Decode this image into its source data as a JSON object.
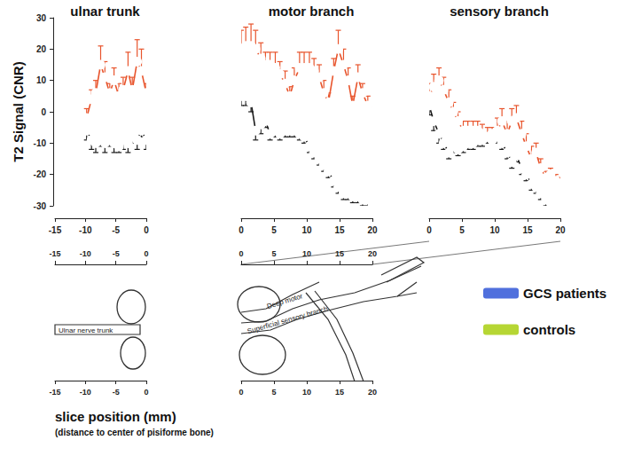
{
  "chart_data": [
    {
      "type": "line",
      "title": "ulnar trunk",
      "ylabel": "T2 Signal (CNR)",
      "xlim": [
        -15,
        0
      ],
      "xticks": [
        -15,
        -10,
        -5,
        0
      ],
      "ylim": [
        -30,
        30
      ],
      "yticks": [
        -30,
        -20,
        -10,
        0,
        10,
        20,
        30
      ],
      "x": [
        -9.8,
        -9.0,
        -8.3,
        -7.5,
        -6.8,
        -6.0,
        -5.3,
        -4.5,
        -3.8,
        -3.0,
        -2.3,
        -1.5,
        -0.8,
        0
      ],
      "series": [
        {
          "name": "GCS patients",
          "color": "#e8542c",
          "marker": "circle",
          "line_style": "solid",
          "values": [
            -2,
            4,
            6,
            15,
            11,
            6,
            10,
            5,
            7,
            13,
            7,
            16,
            13,
            6
          ],
          "error_plus": [
            3,
            3,
            4,
            6,
            5,
            3,
            4,
            4,
            4,
            6,
            4,
            7,
            7,
            3
          ]
        },
        {
          "name": "controls",
          "color": "#1a1a1a",
          "marker": "circle",
          "line_style": "solid",
          "values": [
            -6,
            -9,
            -10,
            -9,
            -10,
            -9,
            -10,
            -11,
            -9,
            -10,
            -8,
            -9,
            -6,
            -9
          ],
          "error_minus": [
            3,
            3,
            3,
            2,
            3,
            2,
            3,
            2,
            3,
            3,
            2,
            3,
            2,
            3
          ]
        }
      ]
    },
    {
      "type": "line",
      "title": "motor branch",
      "tick_labels": "x",
      "xlim": [
        0,
        20
      ],
      "xticks": [
        0,
        5,
        10,
        15,
        20
      ],
      "ylim": [
        -30,
        30
      ],
      "yticks": [
        -30,
        -20,
        -10,
        0,
        10,
        20,
        30
      ],
      "x": [
        0,
        0.7,
        1.5,
        2.2,
        3.0,
        3.7,
        4.4,
        5.2,
        5.9,
        6.7,
        7.4,
        8.1,
        8.9,
        9.6,
        10.4,
        11.1,
        11.9,
        12.6,
        13.3,
        14.1,
        14.8,
        15.6,
        16.3,
        17.0,
        17.8,
        18.5,
        19.3,
        20.0
      ],
      "series": [
        {
          "name": "GCS patients",
          "color": "#e8542c",
          "marker": "circle",
          "line_style": "solid",
          "values": [
            20,
            21,
            21,
            20,
            17,
            15,
            15,
            14,
            12,
            9,
            5,
            10,
            14,
            14,
            14,
            13,
            11,
            6,
            3,
            13,
            20,
            15,
            10,
            2,
            11,
            6,
            2,
            0
          ],
          "error_plus": [
            6,
            6,
            7,
            6,
            5,
            4,
            4,
            5,
            4,
            4,
            3,
            4,
            5,
            5,
            5,
            4,
            4,
            4,
            3,
            4,
            6,
            5,
            4,
            3,
            4,
            3,
            3,
            2
          ]
        },
        {
          "name": "controls",
          "color": "#1a1a1a",
          "marker": "circle",
          "line_style": "solid",
          "values": [
            5,
            5,
            3,
            -6,
            -4,
            -3,
            -7,
            -6,
            -7,
            -6,
            -6,
            -6,
            -7,
            -8,
            -11,
            -13,
            -15,
            -17,
            -19,
            -22,
            -24,
            -26,
            -26,
            -27,
            -27,
            -28,
            -28,
            -30
          ],
          "error_minus": [
            3,
            3,
            3,
            3,
            3,
            2,
            2,
            2,
            2,
            2,
            2,
            2,
            2,
            2,
            2,
            2,
            2,
            2,
            2,
            2,
            2,
            2,
            2,
            2,
            2,
            2,
            2,
            1
          ]
        }
      ]
    },
    {
      "type": "line",
      "title": "sensory branch",
      "tick_labels": "x",
      "xlim": [
        0,
        20
      ],
      "xticks": [
        0,
        5,
        10,
        15,
        20
      ],
      "ylim": [
        -30,
        30
      ],
      "yticks": [
        -30,
        -20,
        -10,
        0,
        10,
        20,
        30
      ],
      "x": [
        0,
        0.7,
        1.5,
        2.2,
        3.0,
        3.7,
        4.4,
        5.2,
        5.9,
        6.7,
        7.4,
        8.1,
        8.9,
        9.6,
        10.4,
        11.1,
        11.9,
        12.6,
        13.3,
        14.1,
        14.8,
        15.6,
        16.3,
        17.0,
        17.8,
        18.5,
        19.3,
        20.0
      ],
      "series": [
        {
          "name": "GCS patients",
          "color": "#e8542c",
          "marker": "circle",
          "line_style": "solid",
          "values": [
            5,
            8,
            10,
            7,
            3,
            0,
            -3,
            -6,
            -6,
            -6,
            -6,
            -7,
            -8,
            -9,
            -6,
            -3,
            -7,
            -3,
            -2,
            -7,
            -11,
            -15,
            -13,
            -18,
            -21,
            -20,
            -22,
            -23
          ],
          "error_plus": [
            4,
            4,
            4,
            4,
            4,
            3,
            3,
            3,
            3,
            3,
            3,
            3,
            3,
            4,
            4,
            4,
            4,
            4,
            4,
            4,
            4,
            4,
            3,
            3,
            2,
            2,
            2,
            2
          ]
        },
        {
          "name": "controls",
          "color": "#1a1a1a",
          "marker": "circle",
          "line_style": "solid",
          "values": [
            2,
            -3,
            -7,
            -10,
            -13,
            -11,
            -12,
            -11,
            -10,
            -10,
            -9,
            -9,
            -8,
            -7,
            -8,
            -10,
            -13,
            -16,
            -14,
            -18,
            -20,
            -23,
            -24,
            -26,
            -28,
            -29,
            -30,
            -30
          ],
          "error_minus": [
            3,
            3,
            3,
            2,
            2,
            2,
            2,
            2,
            2,
            2,
            2,
            2,
            2,
            2,
            2,
            2,
            2,
            2,
            2,
            2,
            2,
            2,
            2,
            2,
            2,
            2,
            2,
            2
          ]
        }
      ]
    }
  ],
  "legend": "right",
  "xlabel": "slice position (mm)",
  "xlabel_note": "(distance to center of pisiforme bone)",
  "scales": [
    {
      "xlim": [
        -15,
        0
      ],
      "xticks": [
        -15,
        -10,
        -5,
        0
      ]
    },
    {
      "xlim": [
        0,
        20
      ],
      "xticks": [
        0,
        5,
        10,
        15,
        20
      ]
    }
  ],
  "diagram": {
    "labels": [
      "Ulnar nerve trunk",
      "Deep motor",
      "Superficial sensory branch"
    ]
  }
}
